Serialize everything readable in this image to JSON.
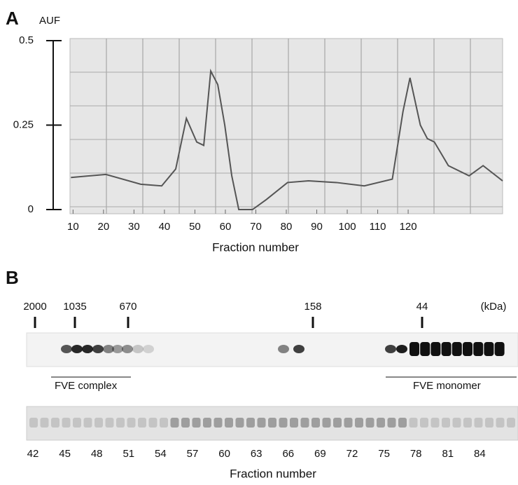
{
  "chart_data": {
    "type": "line",
    "panel_label": "A",
    "y_label": "AUF",
    "x_label": "Fraction number",
    "x": [
      9.3,
      20.8,
      32.2,
      39.1,
      43.7,
      47.2,
      50.6,
      52.9,
      55.2,
      57.5,
      59.8,
      62.1,
      64.4,
      68.9,
      73.5,
      80.4,
      87.3,
      96.5,
      105.6,
      114.8,
      118.3,
      120.6,
      124,
      126.3,
      128.6,
      133.2,
      140,
      144.6,
      151
    ],
    "series": [
      {
        "color": "#555555",
        "values": [
          0.095,
          0.104,
          0.075,
          0.07,
          0.12,
          0.27,
          0.2,
          0.19,
          0.41,
          0.37,
          0.25,
          0.1,
          0,
          0,
          0.03,
          0.08,
          0.085,
          0.08,
          0.07,
          0.09,
          0.29,
          0.39,
          0.25,
          0.21,
          0.2,
          0.13,
          0.1,
          0.13,
          0.085
        ]
      }
    ],
    "xlim": [
      9,
      151
    ],
    "ylim": [
      0,
      0.5
    ],
    "xticks": [
      10,
      20,
      30,
      40,
      50,
      60,
      70,
      80,
      90,
      100,
      110,
      120
    ],
    "yticks": [
      0,
      0.25,
      0.5
    ]
  },
  "gel": {
    "panel_label": "B",
    "markers": [
      "2000",
      "1035",
      "670",
      "158",
      "44"
    ],
    "unit": "(kDa)",
    "groups": [
      "FVE complex",
      "FVE monomer"
    ],
    "fractions": [
      42,
      45,
      48,
      51,
      54,
      57,
      60,
      63,
      66,
      69,
      72,
      75,
      78,
      81,
      84
    ],
    "x_label": "Fraction number"
  }
}
